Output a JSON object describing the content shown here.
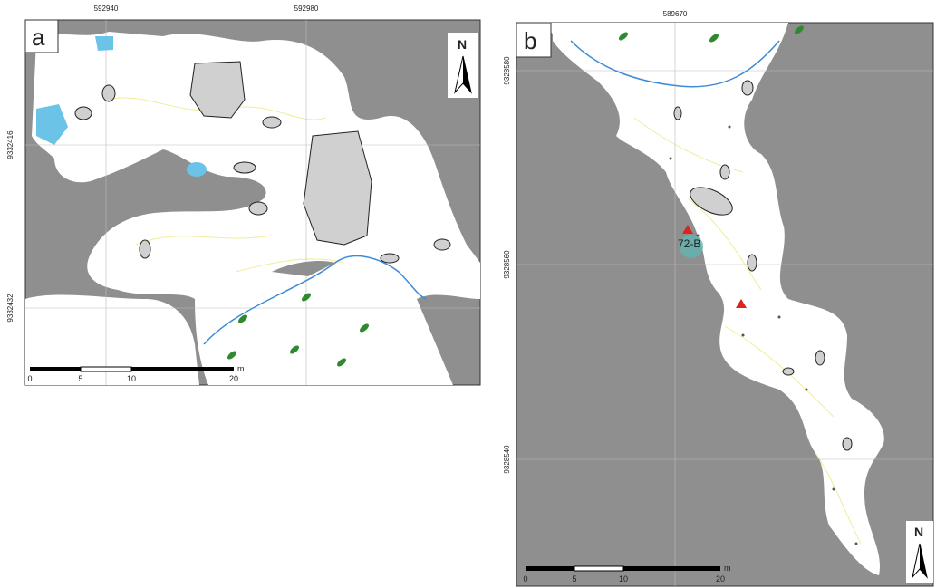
{
  "panels": [
    {
      "label": "a",
      "x_coords": [
        "592940",
        "592980"
      ],
      "y_coords": [
        "9332416",
        "9332432"
      ],
      "scale": {
        "ticks": [
          "0",
          "5",
          "10",
          "20"
        ],
        "unit": "m"
      },
      "north": "N"
    },
    {
      "label": "b",
      "x_coords": [
        "589670"
      ],
      "y_coords": [
        "9328580",
        "9328560",
        "9328540"
      ],
      "scale": {
        "ticks": [
          "0",
          "5",
          "10",
          "20"
        ],
        "unit": "m"
      },
      "north": "N",
      "annotation": "72-B"
    }
  ]
}
